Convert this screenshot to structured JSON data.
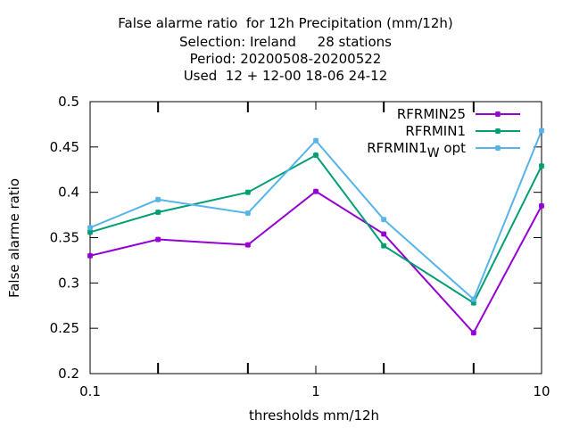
{
  "title": {
    "line1": "False alarme ratio  for 12h Precipitation (mm/12h)",
    "line2": "Selection: Ireland     28 stations",
    "line3": "Period: 20200508-20200522",
    "line4": "Used  12 + 12-00 18-06 24-12"
  },
  "chart_data": {
    "type": "line",
    "xlabel": "thresholds mm/12h",
    "ylabel": "False alarme ratio",
    "xscale": "log",
    "xlim": [
      0.1,
      10
    ],
    "ylim": [
      0.2,
      0.5
    ],
    "grid": false,
    "legend_position": "top-right",
    "x": [
      0.1,
      0.2,
      0.5,
      1,
      2,
      5,
      10
    ],
    "xticks": [
      "0.1",
      "1",
      "10"
    ],
    "yticks": [
      "0.2",
      "0.25",
      "0.3",
      "0.35",
      "0.4",
      "0.45",
      "0.5"
    ],
    "series": [
      {
        "name": "RFRMIN25",
        "color": "#9400d3",
        "values": [
          0.33,
          0.348,
          0.342,
          0.401,
          0.354,
          0.245,
          0.385
        ]
      },
      {
        "name": "RFRMIN1",
        "color": "#009e73",
        "values": [
          0.356,
          0.378,
          0.4,
          0.441,
          0.341,
          0.278,
          0.429
        ]
      },
      {
        "name": "RFRMIN1",
        "name_subscript": "W",
        "name_suffix": " opt",
        "color": "#56b4e9",
        "values": [
          0.361,
          0.392,
          0.377,
          0.457,
          0.37,
          0.282,
          0.468
        ]
      }
    ]
  }
}
